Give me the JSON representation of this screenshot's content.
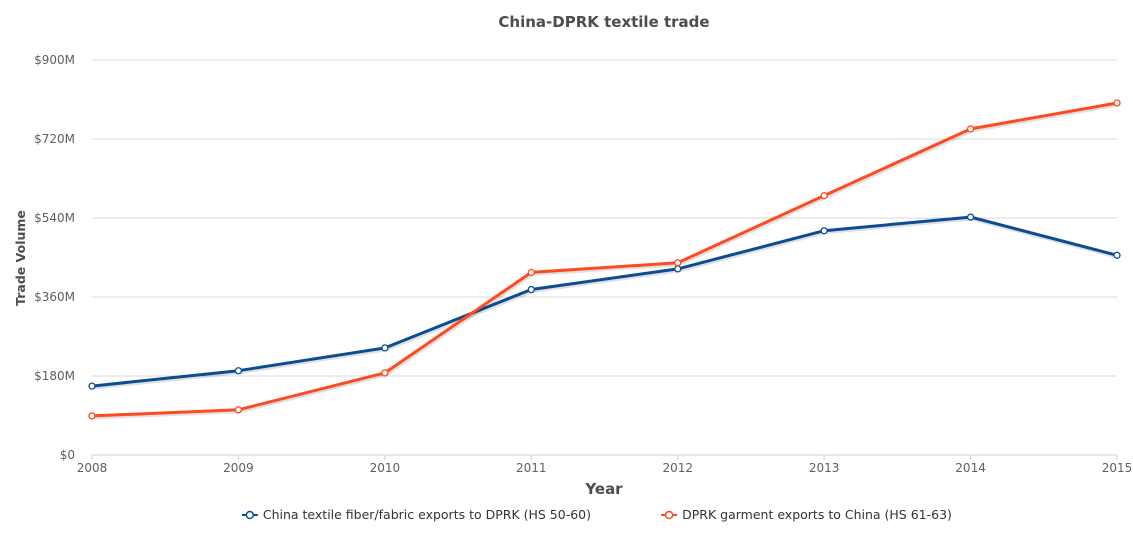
{
  "chart_data": {
    "type": "line",
    "title": "China-DPRK textile trade",
    "xlabel": "Year",
    "ylabel": "Trade Volume",
    "x": [
      2008,
      2009,
      2010,
      2011,
      2012,
      2013,
      2014,
      2015
    ],
    "x_tick_labels": [
      "2008",
      "2009",
      "2010",
      "2011",
      "2012",
      "2013",
      "2014",
      "2015"
    ],
    "ylim": [
      0,
      900
    ],
    "y_unit": "millions USD",
    "y_ticks": [
      0,
      180,
      360,
      540,
      720,
      900
    ],
    "y_tick_labels": [
      "$0",
      "$180M",
      "$360M",
      "$540M",
      "$720M",
      "$900M"
    ],
    "grid": true,
    "legend_position": "bottom-center",
    "series": [
      {
        "name": "China textile fiber/fabric exports to DPRK (HS 50-60)",
        "color": "#0b4d93",
        "values": [
          157,
          192,
          244,
          377,
          424,
          511,
          542,
          455
        ]
      },
      {
        "name": "DPRK garment exports to China (HS 61-63)",
        "color": "#ff4a20",
        "values": [
          89,
          103,
          187,
          416,
          438,
          591,
          743,
          802
        ]
      }
    ]
  }
}
